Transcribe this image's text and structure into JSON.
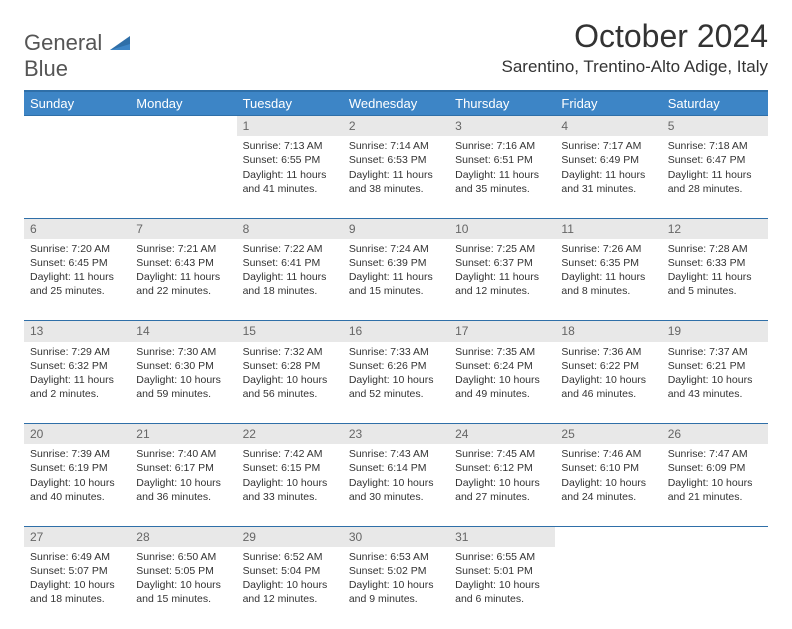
{
  "brand": {
    "part1": "General",
    "part2": "Blue"
  },
  "title": "October 2024",
  "location": "Sarentino, Trentino-Alto Adige, Italy",
  "colors": {
    "header_bg": "#3d85c6",
    "border": "#2f6fa8",
    "daynum_bg": "#e8e8e8",
    "text": "#333333"
  },
  "day_headers": [
    "Sunday",
    "Monday",
    "Tuesday",
    "Wednesday",
    "Thursday",
    "Friday",
    "Saturday"
  ],
  "weeks": [
    {
      "nums": [
        "",
        "",
        "1",
        "2",
        "3",
        "4",
        "5"
      ],
      "cells": [
        null,
        null,
        {
          "sunrise": "Sunrise: 7:13 AM",
          "sunset": "Sunset: 6:55 PM",
          "daylight": "Daylight: 11 hours and 41 minutes."
        },
        {
          "sunrise": "Sunrise: 7:14 AM",
          "sunset": "Sunset: 6:53 PM",
          "daylight": "Daylight: 11 hours and 38 minutes."
        },
        {
          "sunrise": "Sunrise: 7:16 AM",
          "sunset": "Sunset: 6:51 PM",
          "daylight": "Daylight: 11 hours and 35 minutes."
        },
        {
          "sunrise": "Sunrise: 7:17 AM",
          "sunset": "Sunset: 6:49 PM",
          "daylight": "Daylight: 11 hours and 31 minutes."
        },
        {
          "sunrise": "Sunrise: 7:18 AM",
          "sunset": "Sunset: 6:47 PM",
          "daylight": "Daylight: 11 hours and 28 minutes."
        }
      ]
    },
    {
      "nums": [
        "6",
        "7",
        "8",
        "9",
        "10",
        "11",
        "12"
      ],
      "cells": [
        {
          "sunrise": "Sunrise: 7:20 AM",
          "sunset": "Sunset: 6:45 PM",
          "daylight": "Daylight: 11 hours and 25 minutes."
        },
        {
          "sunrise": "Sunrise: 7:21 AM",
          "sunset": "Sunset: 6:43 PM",
          "daylight": "Daylight: 11 hours and 22 minutes."
        },
        {
          "sunrise": "Sunrise: 7:22 AM",
          "sunset": "Sunset: 6:41 PM",
          "daylight": "Daylight: 11 hours and 18 minutes."
        },
        {
          "sunrise": "Sunrise: 7:24 AM",
          "sunset": "Sunset: 6:39 PM",
          "daylight": "Daylight: 11 hours and 15 minutes."
        },
        {
          "sunrise": "Sunrise: 7:25 AM",
          "sunset": "Sunset: 6:37 PM",
          "daylight": "Daylight: 11 hours and 12 minutes."
        },
        {
          "sunrise": "Sunrise: 7:26 AM",
          "sunset": "Sunset: 6:35 PM",
          "daylight": "Daylight: 11 hours and 8 minutes."
        },
        {
          "sunrise": "Sunrise: 7:28 AM",
          "sunset": "Sunset: 6:33 PM",
          "daylight": "Daylight: 11 hours and 5 minutes."
        }
      ]
    },
    {
      "nums": [
        "13",
        "14",
        "15",
        "16",
        "17",
        "18",
        "19"
      ],
      "cells": [
        {
          "sunrise": "Sunrise: 7:29 AM",
          "sunset": "Sunset: 6:32 PM",
          "daylight": "Daylight: 11 hours and 2 minutes."
        },
        {
          "sunrise": "Sunrise: 7:30 AM",
          "sunset": "Sunset: 6:30 PM",
          "daylight": "Daylight: 10 hours and 59 minutes."
        },
        {
          "sunrise": "Sunrise: 7:32 AM",
          "sunset": "Sunset: 6:28 PM",
          "daylight": "Daylight: 10 hours and 56 minutes."
        },
        {
          "sunrise": "Sunrise: 7:33 AM",
          "sunset": "Sunset: 6:26 PM",
          "daylight": "Daylight: 10 hours and 52 minutes."
        },
        {
          "sunrise": "Sunrise: 7:35 AM",
          "sunset": "Sunset: 6:24 PM",
          "daylight": "Daylight: 10 hours and 49 minutes."
        },
        {
          "sunrise": "Sunrise: 7:36 AM",
          "sunset": "Sunset: 6:22 PM",
          "daylight": "Daylight: 10 hours and 46 minutes."
        },
        {
          "sunrise": "Sunrise: 7:37 AM",
          "sunset": "Sunset: 6:21 PM",
          "daylight": "Daylight: 10 hours and 43 minutes."
        }
      ]
    },
    {
      "nums": [
        "20",
        "21",
        "22",
        "23",
        "24",
        "25",
        "26"
      ],
      "cells": [
        {
          "sunrise": "Sunrise: 7:39 AM",
          "sunset": "Sunset: 6:19 PM",
          "daylight": "Daylight: 10 hours and 40 minutes."
        },
        {
          "sunrise": "Sunrise: 7:40 AM",
          "sunset": "Sunset: 6:17 PM",
          "daylight": "Daylight: 10 hours and 36 minutes."
        },
        {
          "sunrise": "Sunrise: 7:42 AM",
          "sunset": "Sunset: 6:15 PM",
          "daylight": "Daylight: 10 hours and 33 minutes."
        },
        {
          "sunrise": "Sunrise: 7:43 AM",
          "sunset": "Sunset: 6:14 PM",
          "daylight": "Daylight: 10 hours and 30 minutes."
        },
        {
          "sunrise": "Sunrise: 7:45 AM",
          "sunset": "Sunset: 6:12 PM",
          "daylight": "Daylight: 10 hours and 27 minutes."
        },
        {
          "sunrise": "Sunrise: 7:46 AM",
          "sunset": "Sunset: 6:10 PM",
          "daylight": "Daylight: 10 hours and 24 minutes."
        },
        {
          "sunrise": "Sunrise: 7:47 AM",
          "sunset": "Sunset: 6:09 PM",
          "daylight": "Daylight: 10 hours and 21 minutes."
        }
      ]
    },
    {
      "nums": [
        "27",
        "28",
        "29",
        "30",
        "31",
        "",
        ""
      ],
      "cells": [
        {
          "sunrise": "Sunrise: 6:49 AM",
          "sunset": "Sunset: 5:07 PM",
          "daylight": "Daylight: 10 hours and 18 minutes."
        },
        {
          "sunrise": "Sunrise: 6:50 AM",
          "sunset": "Sunset: 5:05 PM",
          "daylight": "Daylight: 10 hours and 15 minutes."
        },
        {
          "sunrise": "Sunrise: 6:52 AM",
          "sunset": "Sunset: 5:04 PM",
          "daylight": "Daylight: 10 hours and 12 minutes."
        },
        {
          "sunrise": "Sunrise: 6:53 AM",
          "sunset": "Sunset: 5:02 PM",
          "daylight": "Daylight: 10 hours and 9 minutes."
        },
        {
          "sunrise": "Sunrise: 6:55 AM",
          "sunset": "Sunset: 5:01 PM",
          "daylight": "Daylight: 10 hours and 6 minutes."
        },
        null,
        null
      ]
    }
  ]
}
